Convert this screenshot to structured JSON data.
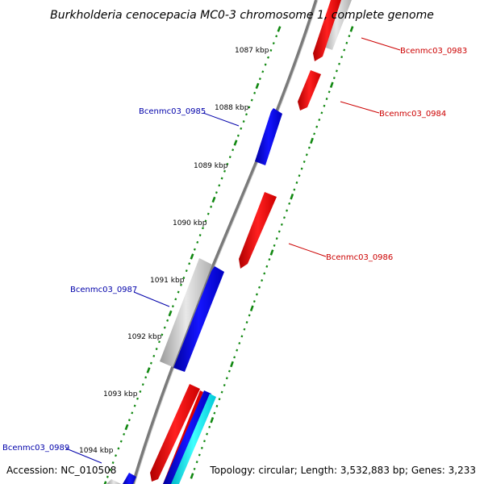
{
  "title": "Burkholderia cenocepacia MC0-3 chromosome 1, complete genome",
  "accession": "Accession: NC_010508",
  "topology": "Topology: circular; Length: 3,532,883 bp; Genes: 3,233",
  "ticks": [
    "1087 kbp",
    "1088 kbp",
    "1089 kbp",
    "1090 kbp",
    "1091 kbp",
    "1092 kbp",
    "1093 kbp",
    "1094 kbp"
  ],
  "genes": [
    {
      "label": "Bcenmc03_0983",
      "color": "#dd0000",
      "strand": "forward"
    },
    {
      "label": "Bcenmc03_0984",
      "color": "#dd0000",
      "strand": "forward"
    },
    {
      "label": "Bcenmc03_0985",
      "color": "#0000cc",
      "strand": "reverse"
    },
    {
      "label": "Bcenmc03_0986",
      "color": "#dd0000",
      "strand": "forward"
    },
    {
      "label": "Bcenmc03_0987",
      "color": "#0000cc",
      "strand": "reverse"
    },
    {
      "label": "Bcenmc03_0989",
      "color": "#0000cc",
      "strand": "reverse"
    }
  ],
  "colors": {
    "forward_gene": "#ee1111",
    "reverse_gene": "#0000ee",
    "gc_track": "#bbbbbb",
    "cyan_track": "#00e5ee",
    "backbone": "#808080",
    "tick_marks": "#118811",
    "forward_label": "#cc0000",
    "reverse_label": "#0000aa"
  }
}
